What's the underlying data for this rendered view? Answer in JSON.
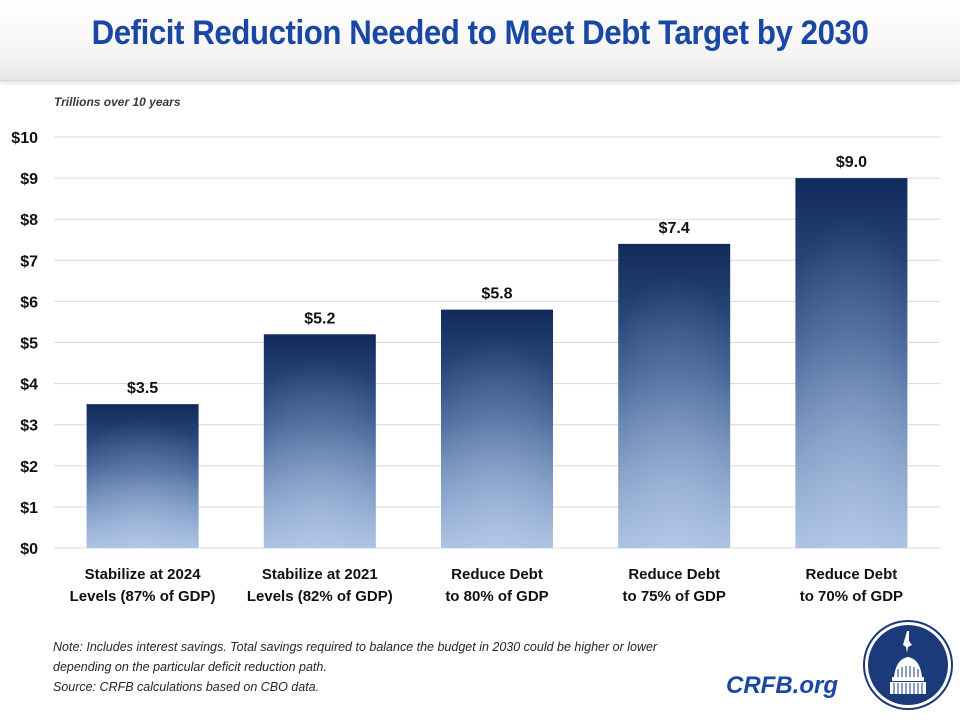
{
  "header": {
    "title": "Deficit Reduction Needed to Meet Debt Target by 2030"
  },
  "chart_data": {
    "type": "bar",
    "title": "Deficit Reduction Needed to Meet Debt Target by 2030",
    "ylabel": "Trillions over 10 years",
    "xlabel": "",
    "ylim": [
      0,
      10
    ],
    "yticks": [
      0,
      1,
      2,
      3,
      4,
      5,
      6,
      7,
      8,
      9,
      10
    ],
    "ytick_labels": [
      "$0",
      "$1",
      "$2",
      "$3",
      "$4",
      "$5",
      "$6",
      "$7",
      "$8",
      "$9",
      "$10"
    ],
    "grid": true,
    "categories": [
      [
        "Stabilize at 2024",
        "Levels (87% of GDP)"
      ],
      [
        "Stabilize at 2021",
        "Levels (82% of GDP)"
      ],
      [
        "Reduce Debt",
        "to 80% of GDP"
      ],
      [
        "Reduce Debt",
        "to 75% of GDP"
      ],
      [
        "Reduce Debt",
        "to 70% of GDP"
      ]
    ],
    "values": [
      3.5,
      5.2,
      5.8,
      7.4,
      9.0
    ],
    "data_labels": [
      "$3.5",
      "$5.2",
      "$5.8",
      "$7.4",
      "$9.0"
    ],
    "bar_colors": {
      "top": "#112a5c",
      "bottom": "#a9c1e2"
    }
  },
  "footer": {
    "note_lines": [
      "Note: Includes interest savings. Total savings required to balance the budget in 2030 could be higher or lower",
      "depending on the particular deficit reduction path.",
      "Source: CRFB calculations based on CBO data."
    ],
    "brand": "CRFB.org",
    "logo_icon": "capitol-dome-icon"
  },
  "colors": {
    "title": "#1a47a5",
    "brand": "#1a47a5",
    "gridline": "#d9d9d9",
    "logo_bg": "#1b3a7a"
  }
}
